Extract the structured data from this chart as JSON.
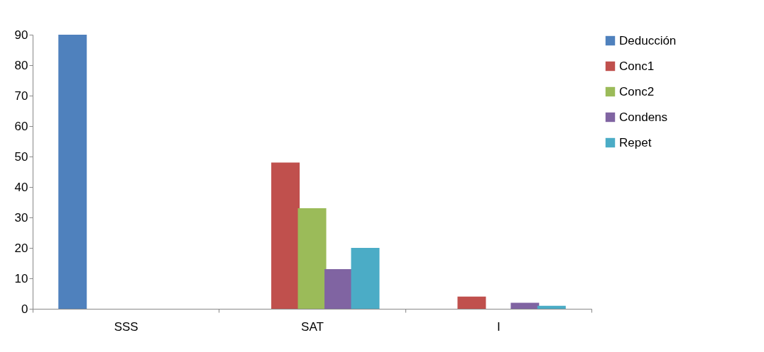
{
  "chart_data": {
    "type": "bar",
    "categories": [
      "SSS",
      "SAT",
      "I"
    ],
    "series": [
      {
        "name": "Deducción",
        "color": "#4f81bd",
        "values": [
          90,
          null,
          null
        ]
      },
      {
        "name": "Conc1",
        "color": "#c0504d",
        "values": [
          null,
          48,
          4
        ]
      },
      {
        "name": "Conc2",
        "color": "#9bbb59",
        "values": [
          null,
          33,
          null
        ]
      },
      {
        "name": "Condens",
        "color": "#8064a2",
        "values": [
          null,
          13,
          2
        ]
      },
      {
        "name": "Repet",
        "color": "#4bacc6",
        "values": [
          null,
          20,
          1
        ]
      }
    ],
    "ylim": [
      0,
      90
    ],
    "yticks": [
      0,
      10,
      20,
      30,
      40,
      50,
      60,
      70,
      80,
      90
    ],
    "grid": false,
    "legend": "right"
  }
}
